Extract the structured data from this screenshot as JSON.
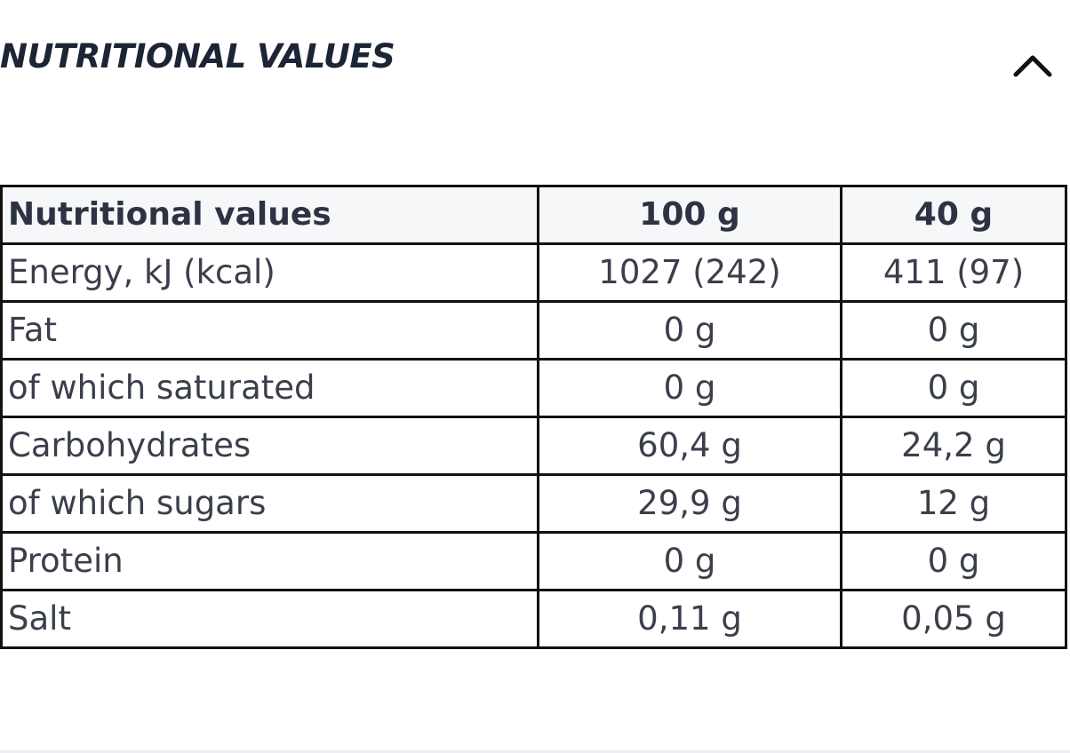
{
  "section": {
    "title": "NUTRITIONAL VALUES",
    "toggle_icon": "chevron-up-icon"
  },
  "table": {
    "headers": [
      "Nutritional values",
      "100 g",
      "40 g"
    ],
    "rows": [
      [
        "Energy, kJ (kcal)",
        "1027 (242)",
        "411 (97)"
      ],
      [
        "Fat",
        "0 g",
        "0 g"
      ],
      [
        "of which saturated",
        "0 g",
        "0 g"
      ],
      [
        "Carbohydrates",
        "60,4 g",
        "24,2 g"
      ],
      [
        "of which sugars",
        "29,9 g",
        "12 g"
      ],
      [
        "Protein",
        "0 g",
        "0 g"
      ],
      [
        "Salt",
        "0,11 g",
        "0,05 g"
      ]
    ]
  }
}
